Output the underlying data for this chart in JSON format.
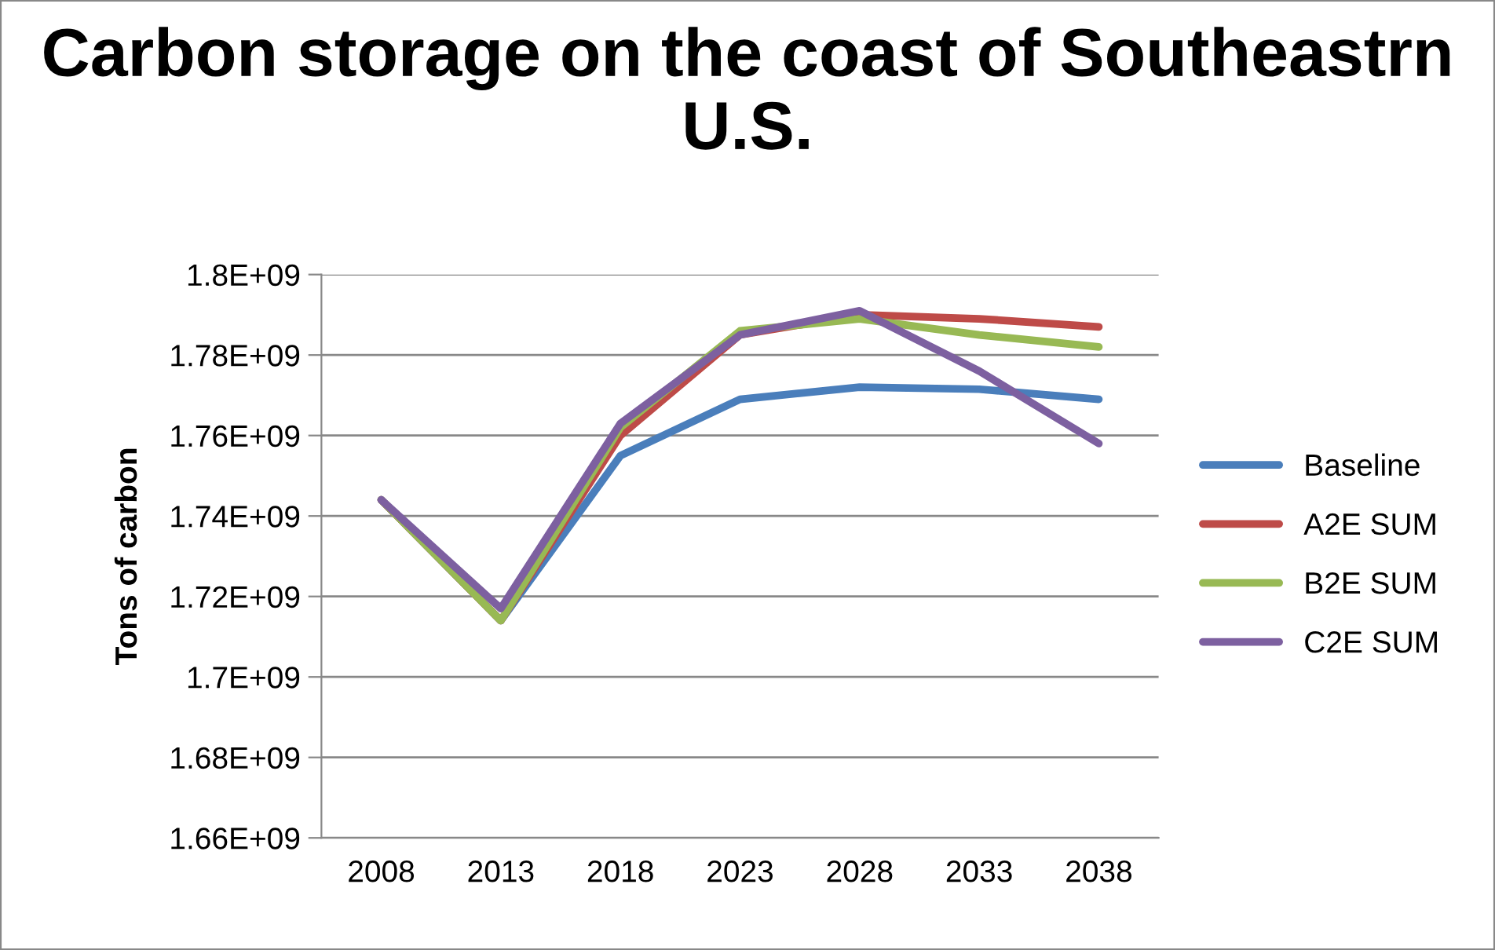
{
  "chart_data": {
    "type": "line",
    "title": "Carbon storage on the coast of Southeastrn U.S.",
    "ylabel": "Tons of carbon",
    "categories": [
      "2008",
      "2013",
      "2018",
      "2023",
      "2028",
      "2033",
      "2038"
    ],
    "series": [
      {
        "name": "Baseline",
        "color": "#4a7ebb",
        "values": [
          1744000000,
          1714000000,
          1755000000,
          1769000000,
          1772000000,
          1771500000,
          1769000000
        ]
      },
      {
        "name": "A2E SUM",
        "color": "#be4b48",
        "values": [
          1744000000,
          1714000000,
          1760000000,
          1785000000,
          1790000000,
          1789000000,
          1787000000
        ]
      },
      {
        "name": "B2E SUM",
        "color": "#98b954",
        "values": [
          1744000000,
          1714000000,
          1762000000,
          1786000000,
          1789000000,
          1785000000,
          1782000000
        ]
      },
      {
        "name": "C2E SUM",
        "color": "#7d60a0",
        "values": [
          1744000000,
          1717000000,
          1763000000,
          1785000000,
          1791000000,
          1776000000,
          1758000000
        ]
      }
    ],
    "ylim": [
      1660000000,
      1800000000
    ],
    "yticks": [
      {
        "value": 1660000000,
        "label": "1.66E+09"
      },
      {
        "value": 1680000000,
        "label": "1.68E+09"
      },
      {
        "value": 1700000000,
        "label": "1.7E+09"
      },
      {
        "value": 1720000000,
        "label": "1.72E+09"
      },
      {
        "value": 1740000000,
        "label": "1.74E+09"
      },
      {
        "value": 1760000000,
        "label": "1.76E+09"
      },
      {
        "value": 1780000000,
        "label": "1.78E+09"
      },
      {
        "value": 1800000000,
        "label": "1.8E+09"
      }
    ],
    "grid": "y",
    "legend": "right",
    "marker": "none",
    "line_style": "solid"
  }
}
